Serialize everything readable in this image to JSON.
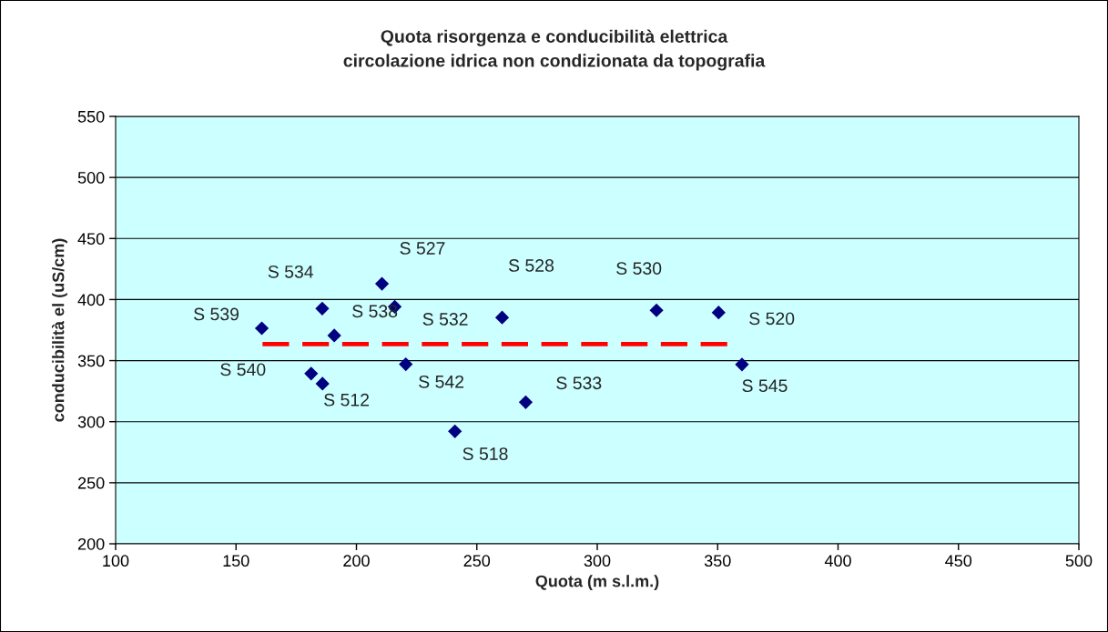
{
  "chart_data": {
    "type": "scatter",
    "title": "Quota risorgenza e conducibilità elettrica\ncircolazione idrica non condizionata da topografia",
    "xlabel": "Quota (m s.l.m.)",
    "ylabel": "conducibilità el (uS/cm)",
    "series": [
      {
        "color": "#000080",
        "marker": "diamond",
        "x": [
          160.7,
          185.8,
          190.8,
          210.6,
          215.9,
          181.2,
          185.9,
          220.5,
          240.9,
          260.5,
          270.3,
          324.6,
          350.4,
          360.1
        ],
        "values": [
          376.5,
          392.6,
          370.6,
          412.9,
          394.1,
          339.4,
          331.1,
          347,
          292.1,
          385.3,
          315.9,
          391.2,
          389.4,
          346.8
        ]
      },
      {
        "type": "line",
        "color": "#ff0000",
        "line_style": "dashed",
        "marker": "none",
        "x": [
          161,
          354.4
        ],
        "values": [
          363.5,
          363.5
        ]
      }
    ],
    "annotations": [
      {
        "text": "S 539",
        "x": 160.7,
        "y": 376.5
      },
      {
        "text": "S 534",
        "x": 185.8,
        "y": 392.6
      },
      {
        "text": "S 538",
        "x": 190.8,
        "y": 370.6
      },
      {
        "text": "S 527",
        "x": 210.6,
        "y": 412.9
      },
      {
        "text": "S 532",
        "x": 215.9,
        "y": 394.1
      },
      {
        "text": "S 540",
        "x": 181.2,
        "y": 339.4
      },
      {
        "text": "S 512",
        "x": 185.9,
        "y": 331.1
      },
      {
        "text": "S 542",
        "x": 220.5,
        "y": 347
      },
      {
        "text": "S 518",
        "x": 240.9,
        "y": 292.1
      },
      {
        "text": "S 528",
        "x": 260.5,
        "y": 385.3
      },
      {
        "text": "S 533",
        "x": 270.3,
        "y": 315.9
      },
      {
        "text": "S 530",
        "x": 324.6,
        "y": 391.2
      },
      {
        "text": "S 520",
        "x": 350.4,
        "y": 389.4
      },
      {
        "text": "S 545",
        "x": 360.1,
        "y": 346.8
      }
    ],
    "xlim": [
      100,
      500
    ],
    "xticks": [
      100,
      150,
      200,
      250,
      300,
      350,
      400,
      450,
      500
    ],
    "ylim": [
      200,
      550
    ],
    "yticks": [
      200,
      250,
      300,
      350,
      400,
      450,
      500,
      550
    ],
    "grid": "y",
    "legend": false
  }
}
